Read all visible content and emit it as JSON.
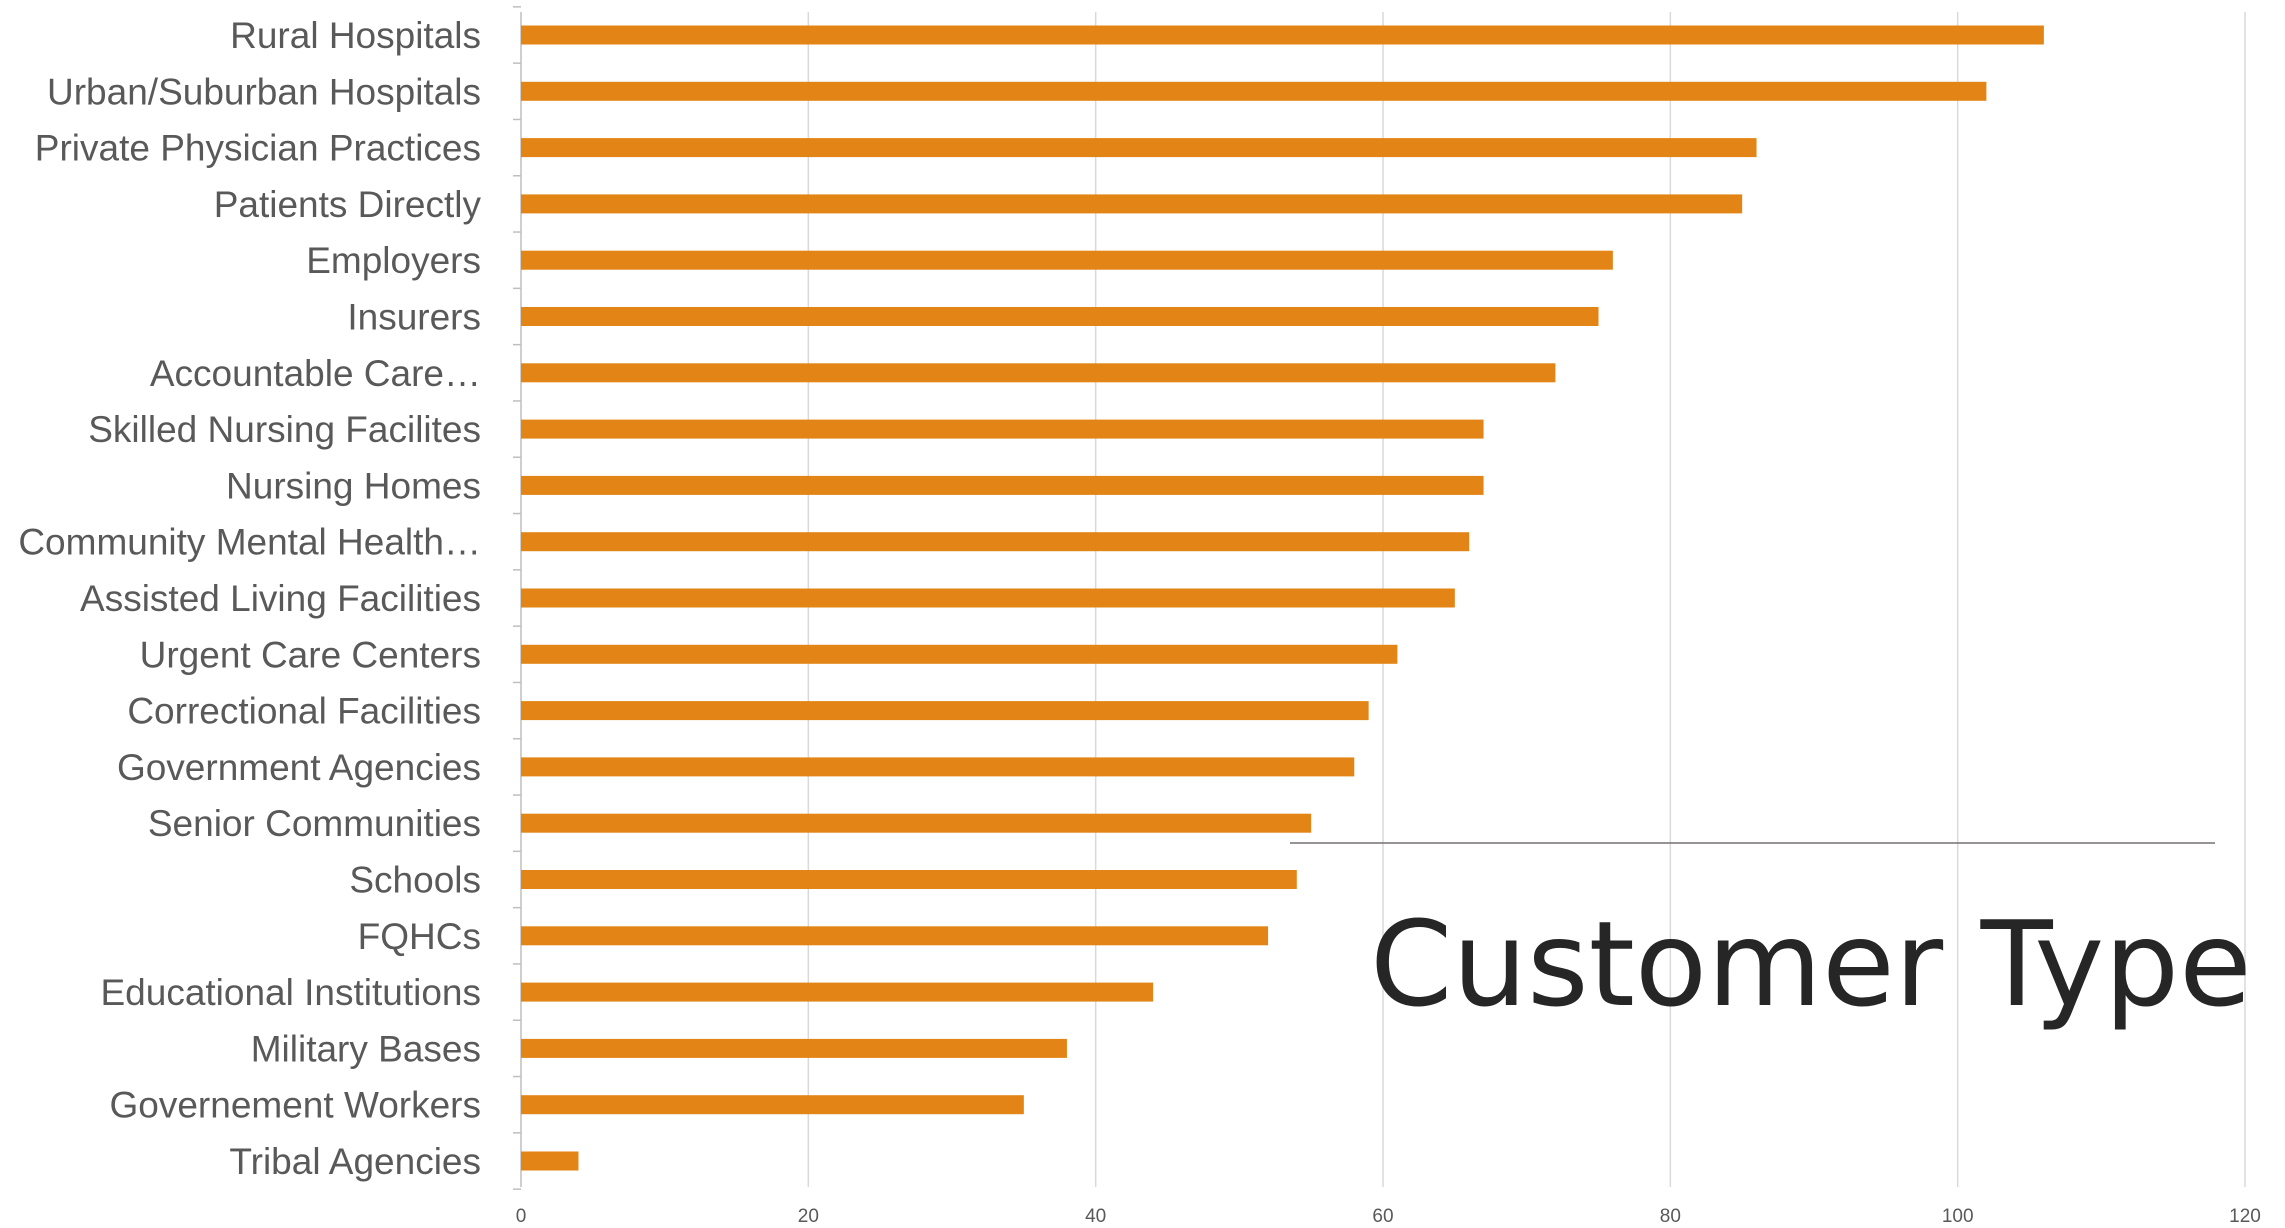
{
  "colors": {
    "bar": "#E28516",
    "grid": "#d9d9d9",
    "axis": "#bfbfbf",
    "label": "#595959",
    "title": "#262626",
    "title_rule": "#767170"
  },
  "chart_data": {
    "type": "bar",
    "orientation": "horizontal",
    "title": "Customer Type",
    "xlabel": "",
    "ylabel": "",
    "xlim": [
      0,
      120
    ],
    "xticks": [
      0,
      20,
      40,
      60,
      80,
      100,
      120
    ],
    "grid": "vertical",
    "legend": "none",
    "categories": [
      "Rural Hospitals",
      "Urban/Suburban Hospitals",
      "Private Physician Practices",
      "Patients Directly",
      "Employers",
      "Insurers",
      "Accountable Care…",
      "Skilled Nursing Facilites",
      "Nursing Homes",
      "Community Mental Health…",
      "Assisted Living Facilities",
      "Urgent Care Centers",
      "Correctional Facilities",
      "Government Agencies",
      "Senior Communities",
      "Schools",
      "FQHCs",
      "Educational Institutions",
      "Military Bases",
      "Governement Workers",
      "Tribal Agencies"
    ],
    "values": [
      106,
      102,
      86,
      85,
      76,
      75,
      72,
      67,
      67,
      66,
      65,
      61,
      59,
      58,
      55,
      54,
      52,
      44,
      38,
      35,
      4
    ]
  }
}
